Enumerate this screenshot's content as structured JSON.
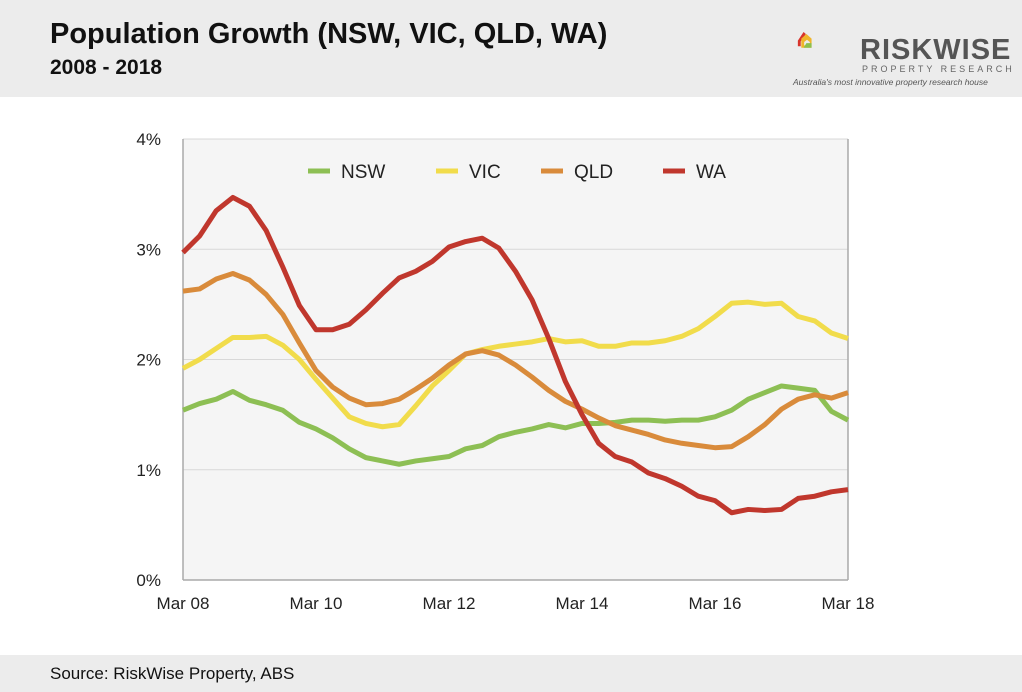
{
  "header": {
    "title": "Population Growth (NSW, VIC, QLD, WA)",
    "subtitle": "2008 - 2018"
  },
  "logo": {
    "brand": "RISKWISE",
    "sub": "PROPERTY RESEARCH",
    "tagline": "Australia's most innovative property research house"
  },
  "footer": {
    "source": "Source: RiskWise Property, ABS"
  },
  "chart_data": {
    "type": "line",
    "title": "Population Growth (NSW, VIC, QLD, WA)",
    "subtitle": "2008 - 2018",
    "x_tick_labels": [
      "Mar 08",
      "Mar 10",
      "Mar 12",
      "Mar 14",
      "Mar 16",
      "Mar 18"
    ],
    "y_tick_labels": [
      "0%",
      "1%",
      "2%",
      "3%",
      "4%"
    ],
    "ylim": [
      0,
      4
    ],
    "x_points": 41,
    "x_desc": "Quarterly, Mar 08 to Mar 18",
    "grid": true,
    "legend_placement": "top-center",
    "series": [
      {
        "name": "NSW",
        "color": "#8dbf54",
        "values": [
          1.54,
          1.6,
          1.64,
          1.71,
          1.63,
          1.59,
          1.54,
          1.43,
          1.37,
          1.29,
          1.19,
          1.11,
          1.08,
          1.05,
          1.08,
          1.1,
          1.12,
          1.19,
          1.22,
          1.3,
          1.34,
          1.37,
          1.41,
          1.38,
          1.42,
          1.42,
          1.43,
          1.45,
          1.45,
          1.44,
          1.45,
          1.45,
          1.48,
          1.54,
          1.64,
          1.7,
          1.76,
          1.74,
          1.72,
          1.53,
          1.45
        ]
      },
      {
        "name": "VIC",
        "color": "#f1dc4b",
        "values": [
          1.92,
          2.0,
          2.1,
          2.2,
          2.2,
          2.21,
          2.13,
          2.0,
          1.82,
          1.65,
          1.48,
          1.42,
          1.39,
          1.41,
          1.58,
          1.76,
          1.9,
          2.05,
          2.09,
          2.12,
          2.14,
          2.16,
          2.19,
          2.16,
          2.17,
          2.12,
          2.12,
          2.15,
          2.15,
          2.17,
          2.21,
          2.28,
          2.39,
          2.51,
          2.52,
          2.5,
          2.51,
          2.39,
          2.35,
          2.24,
          2.19
        ]
      },
      {
        "name": "QLD",
        "color": "#d98b3b",
        "values": [
          2.62,
          2.64,
          2.73,
          2.78,
          2.72,
          2.59,
          2.41,
          2.15,
          1.9,
          1.75,
          1.65,
          1.59,
          1.6,
          1.64,
          1.73,
          1.83,
          1.95,
          2.05,
          2.08,
          2.04,
          1.95,
          1.84,
          1.72,
          1.62,
          1.55,
          1.47,
          1.4,
          1.36,
          1.32,
          1.27,
          1.24,
          1.22,
          1.2,
          1.21,
          1.3,
          1.41,
          1.55,
          1.64,
          1.68,
          1.65,
          1.7
        ]
      },
      {
        "name": "WA",
        "color": "#c0372d",
        "values": [
          2.97,
          3.12,
          3.35,
          3.47,
          3.39,
          3.17,
          2.84,
          2.49,
          2.27,
          2.27,
          2.32,
          2.45,
          2.6,
          2.74,
          2.8,
          2.89,
          3.02,
          3.07,
          3.1,
          3.01,
          2.8,
          2.54,
          2.19,
          1.8,
          1.5,
          1.24,
          1.12,
          1.07,
          0.97,
          0.92,
          0.85,
          0.76,
          0.72,
          0.61,
          0.64,
          0.63,
          0.64,
          0.74,
          0.76,
          0.8,
          0.82
        ]
      }
    ]
  }
}
